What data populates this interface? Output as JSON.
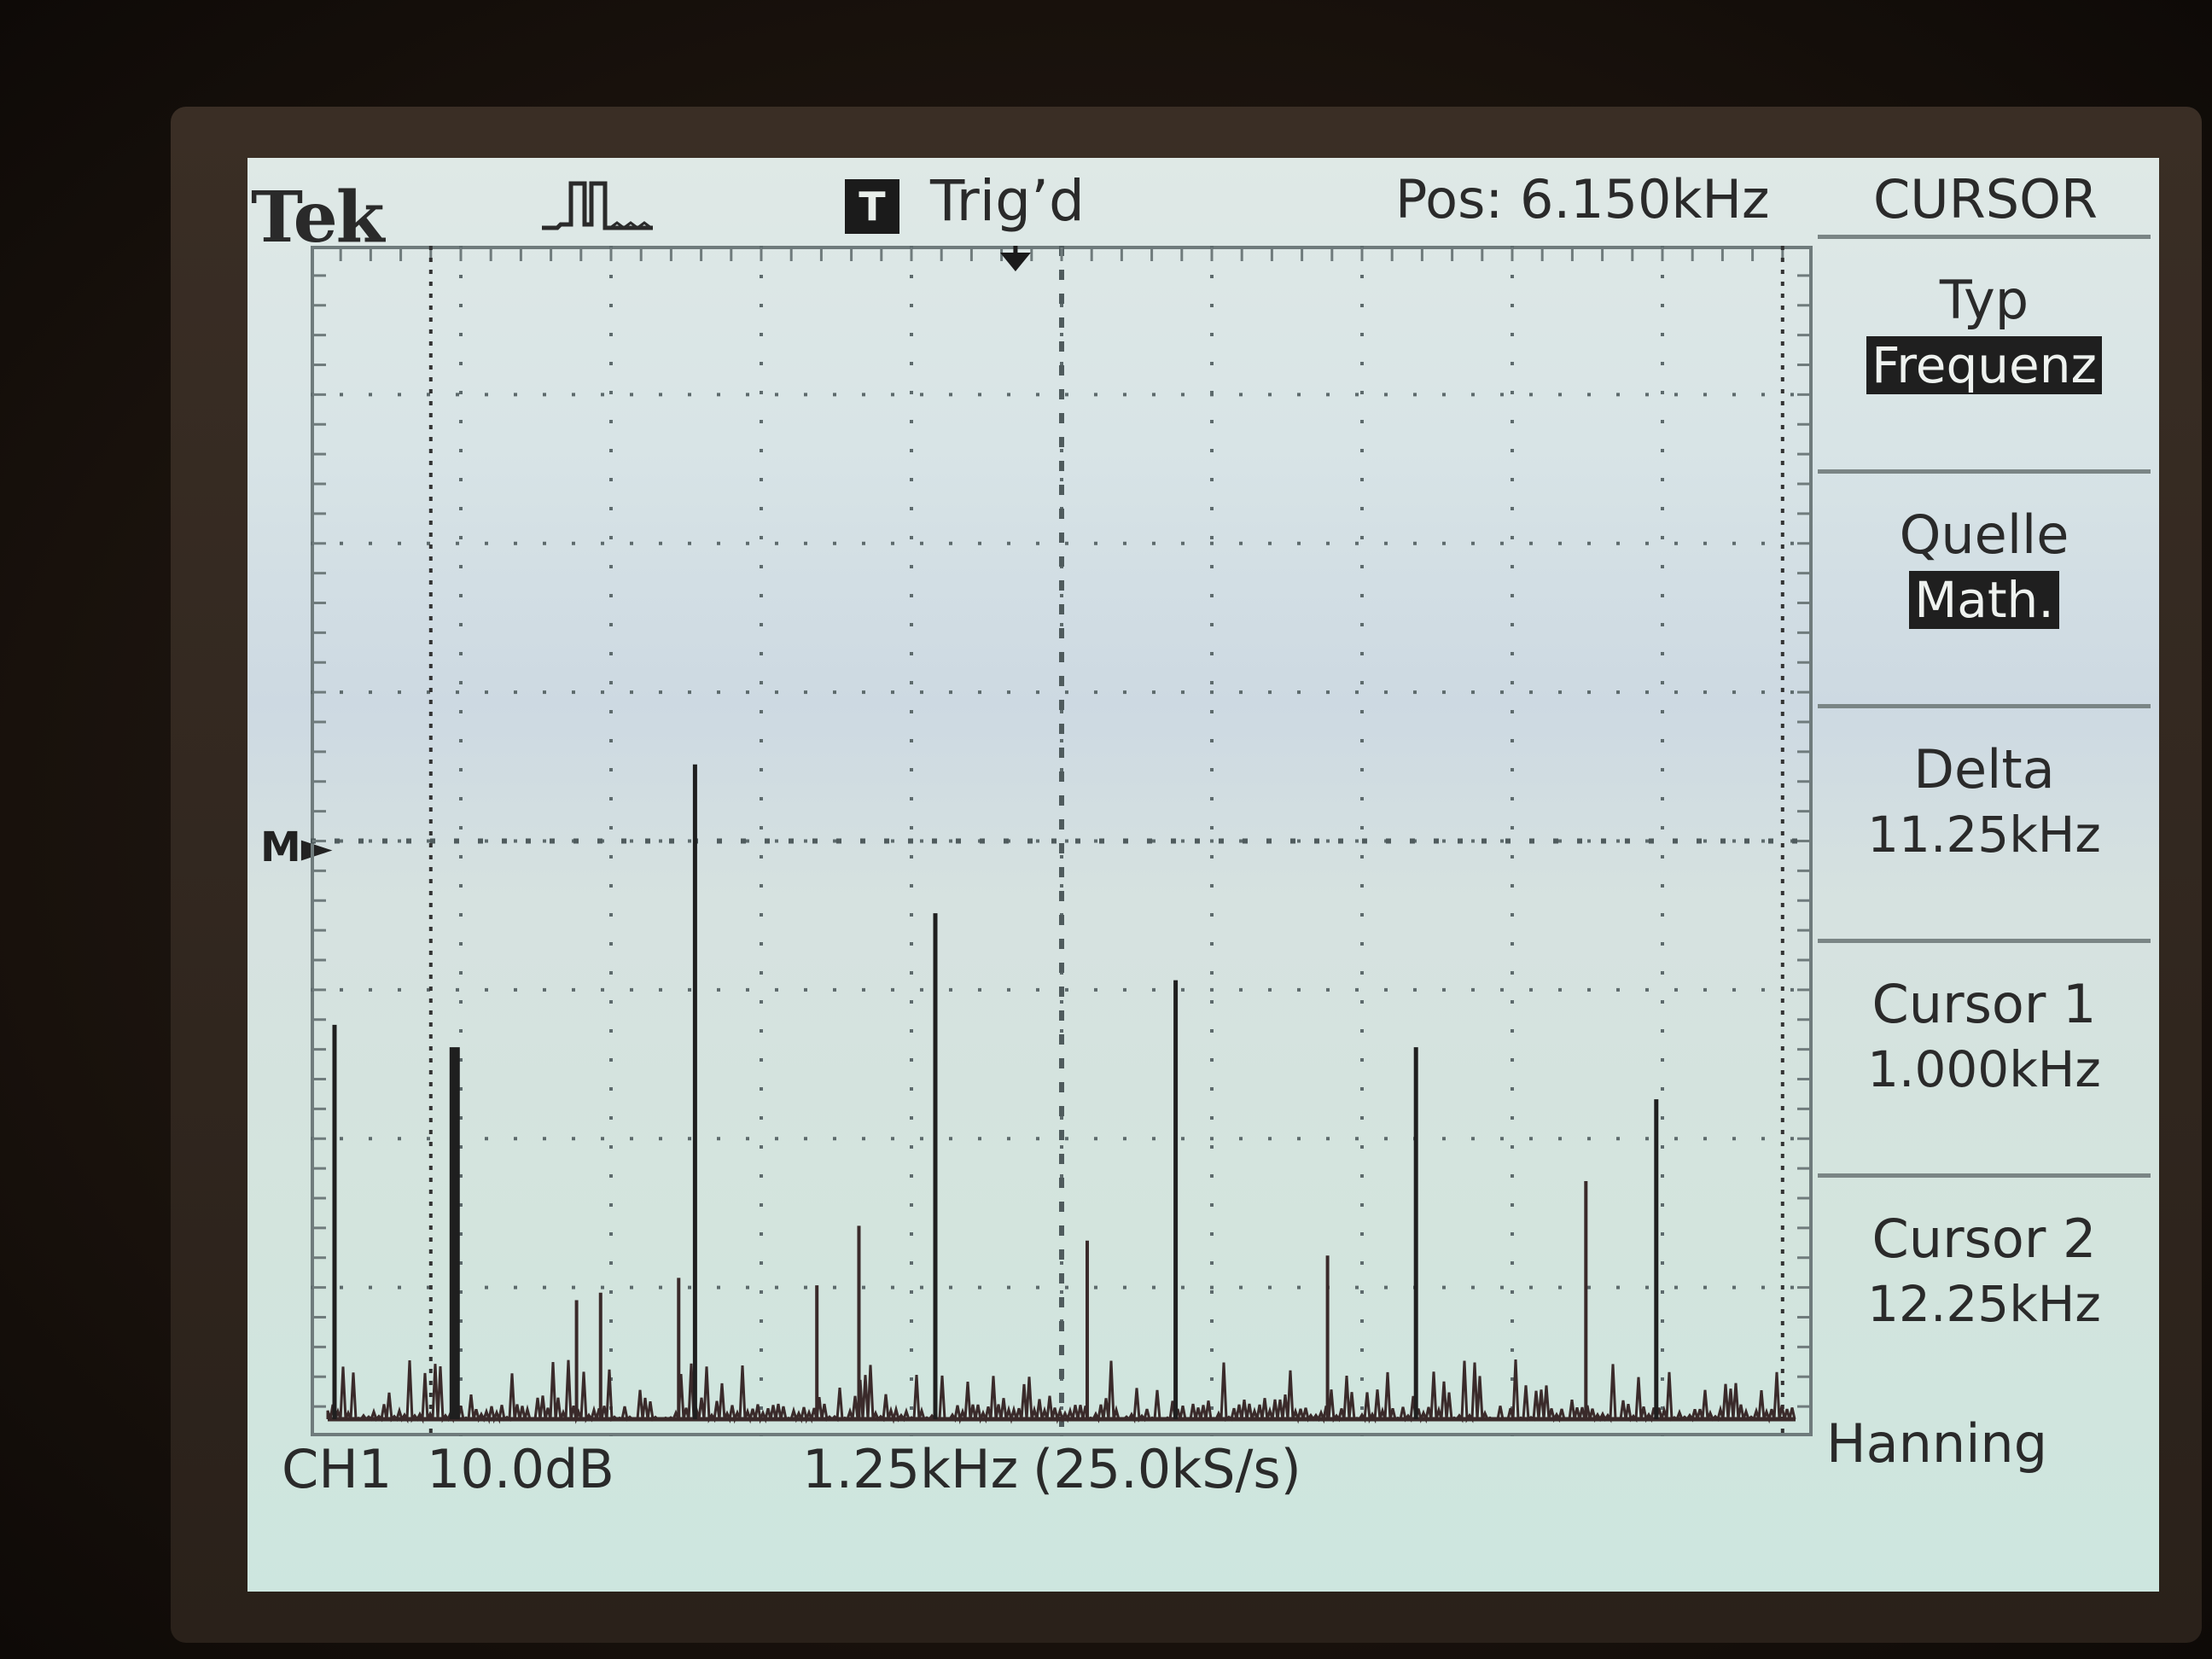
{
  "header": {
    "brand": "Tek",
    "trigger_badge": "T",
    "trigger_status": "Trig’d",
    "position": "Pos: 6.150kHz",
    "menu_title": "CURSOR"
  },
  "menu": {
    "items": [
      {
        "label": "Typ",
        "value": "Frequenz",
        "inverted": true
      },
      {
        "label": "Quelle",
        "value": "Math.",
        "inverted": true
      },
      {
        "label": "Delta",
        "value": "11.25kHz",
        "inverted": false
      },
      {
        "label": "Cursor 1",
        "value": "1.000kHz",
        "inverted": false
      },
      {
        "label": "Cursor 2",
        "value": "12.25kHz",
        "inverted": false
      }
    ]
  },
  "footer": {
    "channel": "CH1",
    "scale": "10.0dB",
    "horizontal": "1.25kHz",
    "sample_rate": "(25.0kS/s)",
    "window": "Hanning"
  },
  "reference_marker": "M",
  "chart_data": {
    "type": "bar",
    "divisions": {
      "x": 10,
      "y": 8
    },
    "x_per_division_khz": 1.25,
    "y_per_division_db": 10.0,
    "harmonics_khz": [
      0.0,
      1.0,
      3.0,
      5.0,
      7.0,
      9.0,
      11.0
    ],
    "harmonic_height_div": [
      2.65,
      2.5,
      4.4,
      3.4,
      2.95,
      2.5,
      2.15
    ],
    "minor_peaks_khz": [
      2.0,
      2.2,
      2.85,
      4.0,
      4.35,
      6.25,
      8.25,
      10.4
    ],
    "minor_peak_height_div": [
      0.8,
      0.85,
      0.95,
      0.9,
      1.3,
      1.2,
      1.1,
      1.6
    ],
    "cursors_khz": [
      1.0,
      12.25
    ],
    "trigger_position_khz": 6.15
  }
}
